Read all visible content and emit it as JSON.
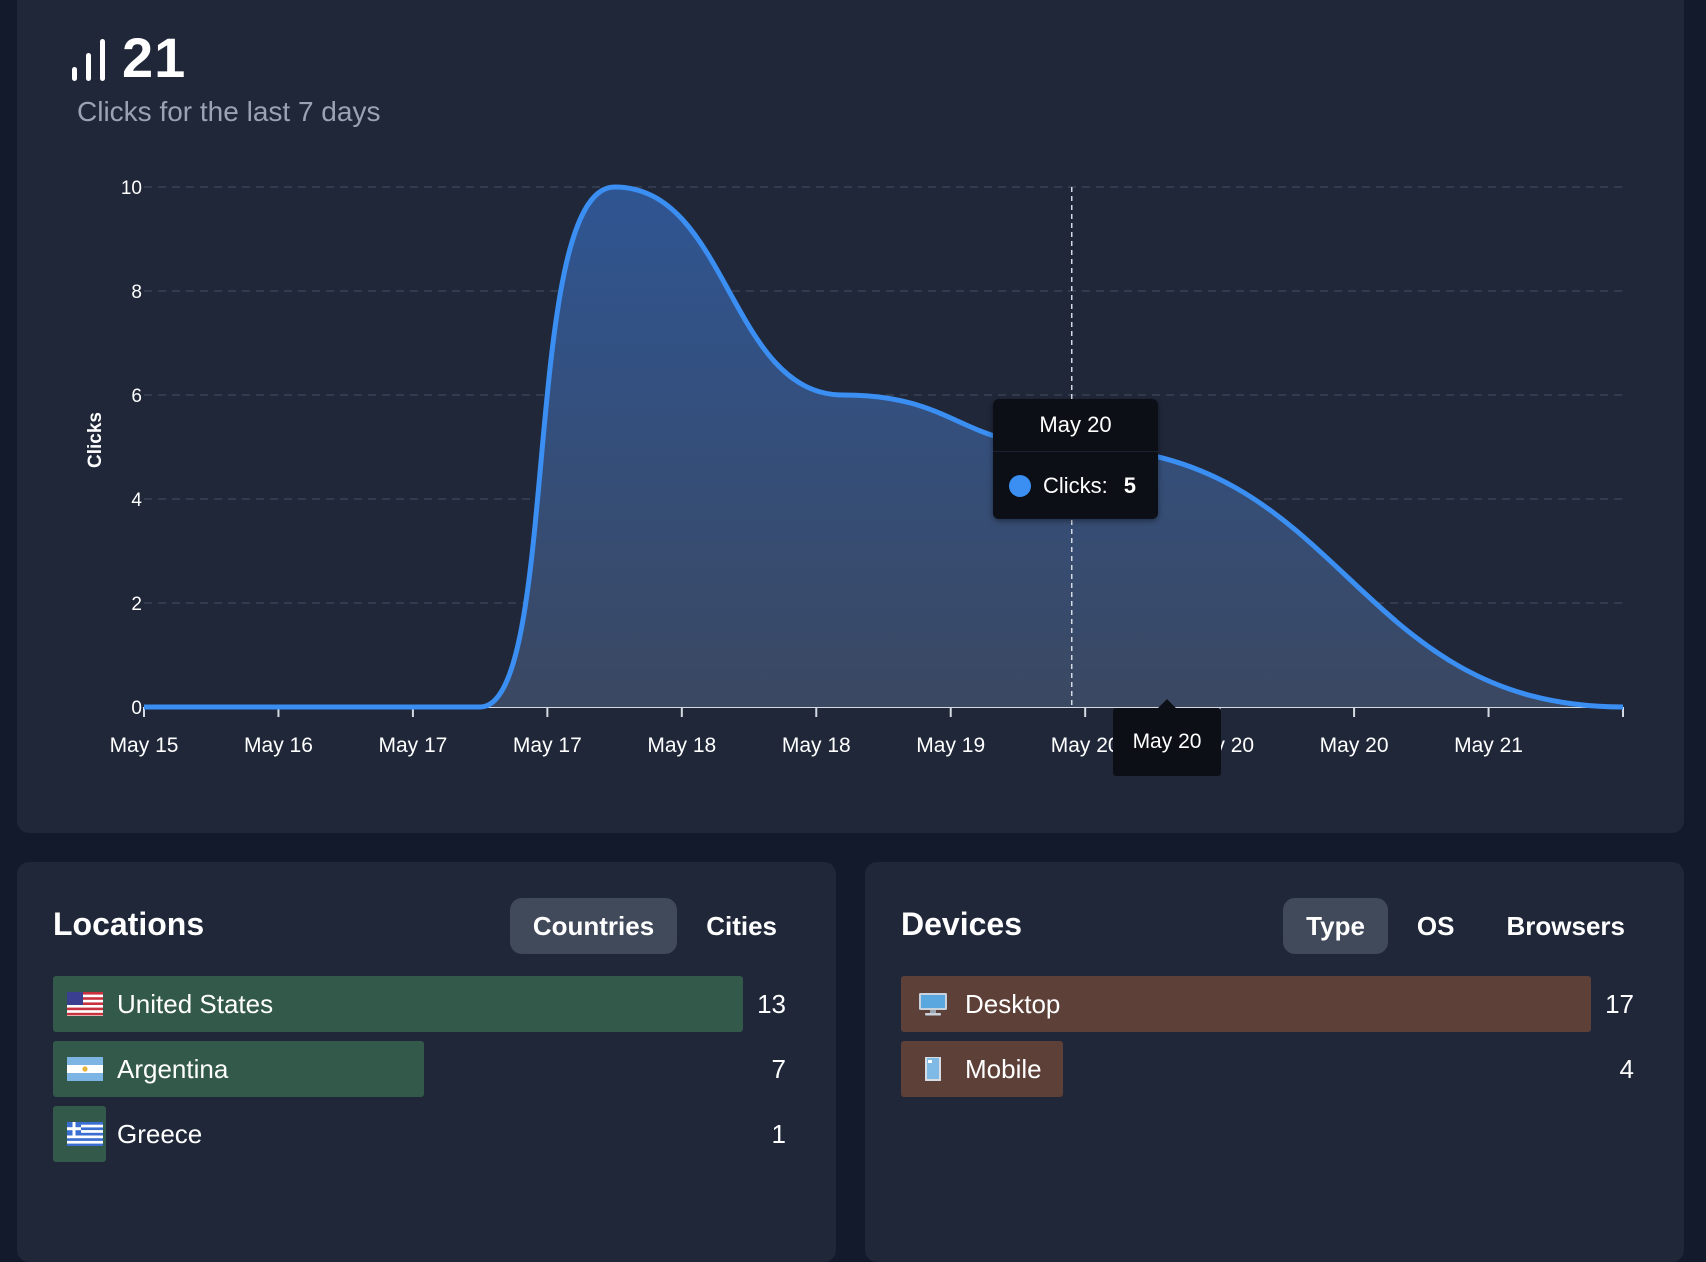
{
  "summary": {
    "total_clicks": "21",
    "subtitle": "Clicks for the last 7 days",
    "icon": "bar-chart-icon"
  },
  "chart_data": {
    "type": "area",
    "ylabel": "Clicks",
    "xlabel": "",
    "ylim": [
      0,
      10
    ],
    "yticks": [
      0,
      2,
      4,
      6,
      8,
      10
    ],
    "grid": true,
    "x_tick_labels": [
      "May 15",
      "May 16",
      "May 17",
      "May 17",
      "May 18",
      "May 18",
      "May 19",
      "May 20",
      "May 20",
      "May 20",
      "May 21",
      ""
    ],
    "series": [
      {
        "name": "Clicks",
        "color": "#3b8ef2",
        "x": [
          "May 15",
          "May 16",
          "May 17",
          "May 18",
          "May 19",
          "May 20",
          "May 21"
        ],
        "values": [
          0,
          0,
          0,
          10,
          6,
          5,
          0
        ]
      }
    ],
    "tooltip": {
      "title": "May 20",
      "label": "Clicks:",
      "value": "5"
    },
    "axis_pointer_label": "May 20"
  },
  "locations": {
    "title": "Locations",
    "tabs": [
      {
        "label": "Countries",
        "active": true
      },
      {
        "label": "Cities",
        "active": false
      }
    ],
    "max": 13,
    "items": [
      {
        "label": "United States",
        "count": 13,
        "icon": "flag-us-icon"
      },
      {
        "label": "Argentina",
        "count": 7,
        "icon": "flag-ar-icon"
      },
      {
        "label": "Greece",
        "count": 1,
        "icon": "flag-gr-icon"
      }
    ]
  },
  "devices": {
    "title": "Devices",
    "tabs": [
      {
        "label": "Type",
        "active": true
      },
      {
        "label": "OS",
        "active": false
      },
      {
        "label": "Browsers",
        "active": false
      }
    ],
    "max": 17,
    "items": [
      {
        "label": "Desktop",
        "count": 17,
        "icon": "desktop-icon"
      },
      {
        "label": "Mobile",
        "count": 4,
        "icon": "mobile-icon"
      }
    ]
  },
  "colors": {
    "accent": "#3b8ef2",
    "location_bar": "#33594a",
    "device_bar": "#5d4038",
    "card": "#1f2739",
    "background": "#121a2b"
  }
}
